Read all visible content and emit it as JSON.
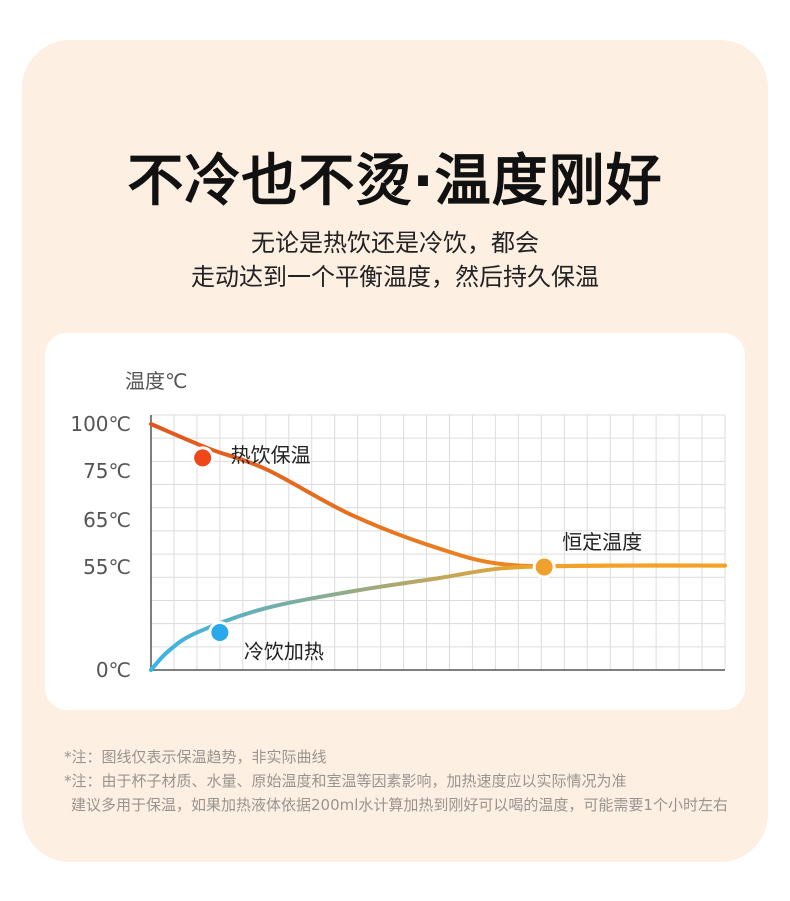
{
  "header": {
    "title": "不冷也不烫·温度刚好",
    "subtitle_line1": "无论是热饮还是冷饮，都会",
    "subtitle_line2": "走动达到一个平衡温度，然后持久保温"
  },
  "colors": {
    "card_bg": "#fdefe2",
    "hot_curve_start": "#e0561c",
    "hot_curve_end": "#f3a225",
    "cold_curve_start": "#35b4ea",
    "cold_curve_end": "#f3a225",
    "hot_dot": "#f0471a",
    "cold_dot": "#29a9ec",
    "equilibrium_dot": "#f0a02e"
  },
  "chart_data": {
    "type": "line",
    "ylabel": "温度℃",
    "y_ticks": [
      "100℃",
      "75℃",
      "65℃",
      "55℃",
      "0℃"
    ],
    "y_tick_values": [
      100,
      75,
      65,
      55,
      0
    ],
    "ylim": [
      0,
      100
    ],
    "grid": true,
    "series": [
      {
        "name": "热饮保温",
        "color": "hot",
        "points": [
          [
            0,
            100
          ],
          [
            10,
            87
          ],
          [
            20,
            76
          ],
          [
            35,
            66
          ],
          [
            50,
            59
          ],
          [
            62,
            55.5
          ],
          [
            80,
            55.3
          ],
          [
            100,
            55.3
          ]
        ]
      },
      {
        "name": "冷饮加热",
        "color": "cold",
        "points": [
          [
            0,
            0
          ],
          [
            3,
            10
          ],
          [
            8,
            20
          ],
          [
            20,
            33
          ],
          [
            35,
            42
          ],
          [
            50,
            49
          ],
          [
            62,
            54.5
          ],
          [
            80,
            55.3
          ],
          [
            100,
            55.3
          ]
        ]
      }
    ],
    "annotations": [
      {
        "label": "热饮保温",
        "x": 9,
        "y": 82
      },
      {
        "label": "冷饮加热",
        "x": 12,
        "y": 20
      },
      {
        "label": "恒定温度",
        "x": 68.5,
        "y": 55
      }
    ]
  },
  "notes": [
    "*注：图线仅表示保温趋势，非实际曲线",
    "*注：由于杯子材质、水量、原始温度和室温等因素影响，加热速度应以实际情况为准",
    "建议多用于保温，如果加热液体依据200ml水计算加热到刚好可以喝的温度，可能需要1个小时左右"
  ]
}
